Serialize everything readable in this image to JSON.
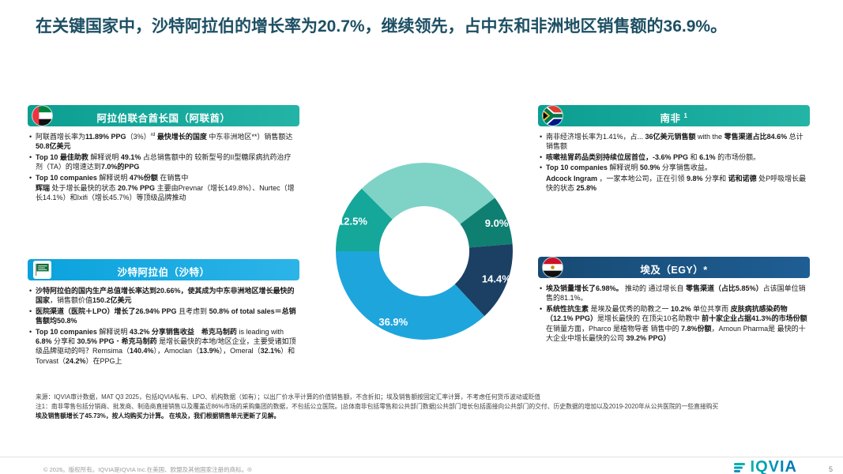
{
  "slide": {
    "title": "在关键国家中，沙特阿拉伯的增长率为20.7%，继续领先，占中东和非洲地区销售额的36.9%。",
    "page_number": "5",
    "copyright": "© 2026。版权所有。IQVIA是IQVIA Inc.在美国、欧盟及其他国家注册的商标。®",
    "logo_text": "IQVIA"
  },
  "boxes": [
    {
      "id": "uae",
      "header": "阿拉伯联合酋长国（阿联酋）",
      "header_sup": "",
      "header_colors": [
        "#0b9e91",
        "#23b4a6"
      ],
      "bullets": [
        {
          "marker": true,
          "runs": [
            {
              "t": "阿联酋增长率为"
            },
            {
              "t": "11.89% PPG",
              "b": true
            },
            {
              "t": "（3%）"
            },
            {
              "t": "rd",
              "sup": true
            },
            {
              "t": " "
            },
            {
              "t": "最快增长的国度",
              "b": true
            },
            {
              "t": " 中东非洲地区**）销售额达"
            },
            {
              "t": "50.8亿美元",
              "b": true
            }
          ]
        },
        {
          "marker": true,
          "runs": [
            {
              "t": "Top 10 最佳助教 ",
              "b": true
            },
            {
              "t": "解释说明 "
            },
            {
              "t": "49.1%",
              "b": true
            },
            {
              "t": " 占总销售额中的 较新型号的II型糖尿病抗药治疗剂（TA）的增速达到"
            },
            {
              "t": "7.0%的PPG",
              "b": true
            }
          ]
        },
        {
          "marker": true,
          "runs": [
            {
              "t": "Top 10 companies ",
              "b": true
            },
            {
              "t": "解释说明 "
            },
            {
              "t": "47%份额",
              "b": true
            },
            {
              "t": " 在销售中"
            }
          ]
        },
        {
          "marker": false,
          "runs": [
            {
              "t": "辉瑞",
              "b": true
            },
            {
              "t": " 处于增长最快的状态 "
            },
            {
              "t": "20.7% PPG",
              "b": true
            },
            {
              "t": " 主要由Prevnar（增长149.8%）、Nurtec（增长14.1%）和Ixifi（增长45.7%）等顶级品牌推动"
            }
          ]
        }
      ]
    },
    {
      "id": "saudi",
      "header": "沙特阿拉伯（沙特）",
      "header_sup": "",
      "header_colors": [
        "#0aa2dc",
        "#2cb4e8"
      ],
      "bullets": [
        {
          "marker": true,
          "runs": [
            {
              "t": "沙特阿拉伯的国内生产总值增长率达到20.66%，使其成为",
              "b": true
            },
            {
              "t": "中东非洲地区增长最快的国家",
              "b": true
            },
            {
              "t": "，销售额价值"
            },
            {
              "t": "150.2亿美元",
              "b": true
            }
          ]
        },
        {
          "marker": true,
          "runs": [
            {
              "t": "医院渠道（医院＋LPO）增长了",
              "b": true
            },
            {
              "t": "26.94% PPG",
              "b": true
            },
            {
              "t": " 且考虑到 "
            },
            {
              "t": "50.8% of total sales＝总销售额均50.8%",
              "b": true
            }
          ]
        },
        {
          "marker": true,
          "runs": [
            {
              "t": "Top 10 companies ",
              "b": true
            },
            {
              "t": "解释说明 "
            },
            {
              "t": "43.2% 分享销售收益",
              "b": true
            },
            {
              "t": "　"
            },
            {
              "t": "希克马制药",
              "b": true
            },
            {
              "t": " is leading with "
            },
            {
              "t": "6.8%",
              "b": true
            },
            {
              "t": " 分享和 "
            },
            {
              "t": "30.5% PPG",
              "b": true
            },
            {
              "t": "・"
            },
            {
              "t": "希克马制药",
              "b": true
            },
            {
              "t": " 是增长最快的本地/地区企业，主要受诸如顶级品牌驱动的吗？Remsima（"
            },
            {
              "t": "140.4%",
              "b": true
            },
            {
              "t": "），Amoclan（"
            },
            {
              "t": "13.9%",
              "b": true
            },
            {
              "t": "），Omeral（"
            },
            {
              "t": "32.1%",
              "b": true
            },
            {
              "t": "）和Torvast（"
            },
            {
              "t": "24.2%",
              "b": true
            },
            {
              "t": "）在PPG上"
            }
          ]
        }
      ]
    },
    {
      "id": "south-africa",
      "header": "南非",
      "header_sup": "1",
      "header_colors": [
        "#0b9e91",
        "#23b4a6"
      ],
      "bullets": [
        {
          "marker": true,
          "runs": [
            {
              "t": "南非经济增长率为1.41%，占... "
            },
            {
              "t": "36亿美元销售额",
              "b": true
            },
            {
              "t": " with the "
            },
            {
              "t": "零售渠道占比84.6%",
              "b": true
            },
            {
              "t": " 总计销售额"
            }
          ]
        },
        {
          "marker": true,
          "runs": [
            {
              "t": "咳嗽祛胃药品类别持续位居首位，",
              "b": true
            },
            {
              "t": "-3.6% PPG",
              "b": true
            },
            {
              "t": " 和 "
            },
            {
              "t": "6.1%",
              "b": true
            },
            {
              "t": " 的市场份额。"
            }
          ]
        },
        {
          "marker": true,
          "runs": [
            {
              "t": "Top 10 companies ",
              "b": true
            },
            {
              "t": "解释说明 "
            },
            {
              "t": "50.9%",
              "b": true
            },
            {
              "t": " 分享销售收益。"
            }
          ]
        },
        {
          "marker": false,
          "runs": [
            {
              "t": "Adcock Ingram",
              "b": true
            },
            {
              "t": " ，一家本地公司，正在引领 "
            },
            {
              "t": "9.8%",
              "b": true
            },
            {
              "t": " 分享和 "
            },
            {
              "t": "诺和诺德",
              "b": true
            },
            {
              "t": " 处P呼吸增长最快的状态 "
            },
            {
              "t": "25.8%",
              "b": true
            }
          ]
        }
      ]
    },
    {
      "id": "egypt",
      "header": "埃及（EGY）*",
      "header_sup": "",
      "header_colors": [
        "#174a73",
        "#1e5e94"
      ],
      "bullets": [
        {
          "marker": true,
          "runs": [
            {
              "t": "埃及销量增长了6.98%。",
              "b": true
            },
            {
              "t": " 推动的 通过增长自 "
            },
            {
              "t": "零售渠道（占比5.85%）",
              "b": true
            },
            {
              "t": "占该国单位销售的81.1%。"
            }
          ]
        },
        {
          "marker": true,
          "runs": [
            {
              "t": "系统性抗生素",
              "b": true
            },
            {
              "t": " 是埃及最优秀的助教之一 "
            },
            {
              "t": "10.2%",
              "b": true
            },
            {
              "t": " 单位共享而 "
            },
            {
              "t": "皮肤病抗感染药物（12.1% PPG）",
              "b": true
            },
            {
              "t": "是增长最快的 在顶尖10名助教中 "
            },
            {
              "t": "前十家企业占据41.3%的市场份额",
              "b": true
            },
            {
              "t": " 在销量方面，Pharco 是植物导者 销售中的 "
            },
            {
              "t": "7.8%份额",
              "b": true
            },
            {
              "t": "，Amoun Pharma是 最快的十大企业中增长最快的公司 "
            },
            {
              "t": "39.2% PPG）",
              "b": true
            }
          ]
        }
      ]
    }
  ],
  "chart_data": {
    "type": "pie",
    "donut": true,
    "title": "",
    "start_angle": 315,
    "segments": [
      {
        "label": "",
        "value": 27.2,
        "color": "#7fd3c6",
        "estimated": true
      },
      {
        "label": "9.0%",
        "value": 9.0,
        "color": "#0f7f72"
      },
      {
        "label": "14.4%",
        "value": 14.4,
        "color": "#1b4064"
      },
      {
        "label": "36.9%",
        "value": 36.9,
        "color": "#1ea6dc"
      },
      {
        "label": "12.5%",
        "value": 12.5,
        "color": "#14a79a"
      }
    ]
  },
  "footer": {
    "source": "来源：IQVIA审计数据，MAT Q3 2025，包括IQVIA私有、LPO、机构数据（如有）；以出厂价水平计算的价值销售额，不含折扣；埃及销售额按固定汇率计算，不考虑任何货币波动或贬值",
    "note1": "注1：南非零售包括分销商、批发商、制造商直接销售以及覆盖近86%市场的采购集团的数据，不包括公立医院。|总体南非包括零售和公共部门数据|公共部门增长包括面接向公共部门的交付、历史数据的增加以及2019-2020年从公共医院的一些直接购买",
    "note2": "埃及销售额增长了45.73%，按人均购买力计算。 在埃及，我们根据销售单元更新了见解。"
  }
}
